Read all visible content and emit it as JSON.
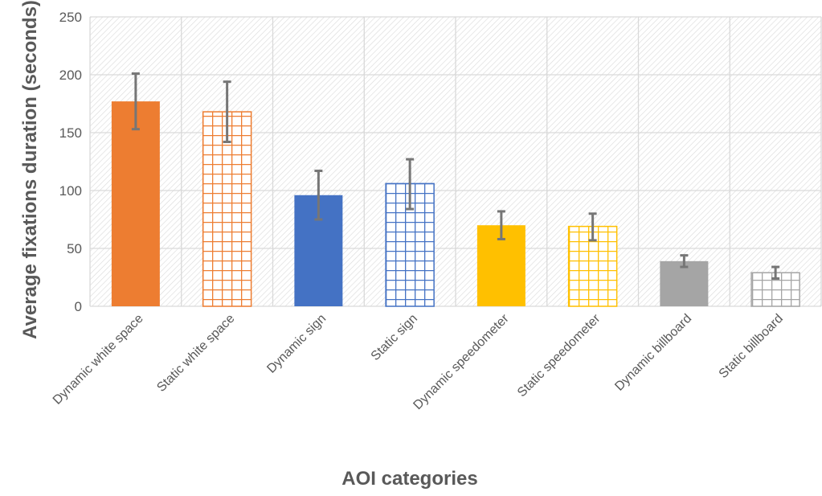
{
  "chart_data": {
    "type": "bar",
    "title": "",
    "xlabel": "AOI categories",
    "ylabel": "Average fixations duration (seconds)",
    "ylim": [
      0,
      250
    ],
    "yticks": [
      0,
      50,
      100,
      150,
      200,
      250
    ],
    "grid": true,
    "legend": "none",
    "categories": [
      "Dynamic white space",
      "Static white space",
      "Dynamic sign",
      "Static sign",
      "Dynamic speedometer",
      "Static speedometer",
      "Dynamic billboard",
      "Static billboard"
    ],
    "values": [
      177,
      168,
      96,
      106,
      70,
      69,
      39,
      29
    ],
    "error_low": [
      153,
      142,
      75,
      84,
      58,
      57,
      34,
      24
    ],
    "error_high": [
      201,
      194,
      117,
      127,
      82,
      80,
      44,
      34
    ],
    "styles": [
      "solid",
      "grid",
      "solid",
      "grid",
      "solid",
      "grid",
      "solid",
      "grid"
    ],
    "colors": [
      "#ED7D31",
      "#ED7D31",
      "#4472C4",
      "#4472C4",
      "#FFC000",
      "#FFC000",
      "#A5A5A5",
      "#A5A5A5"
    ],
    "error_bar_color": "#767676"
  }
}
